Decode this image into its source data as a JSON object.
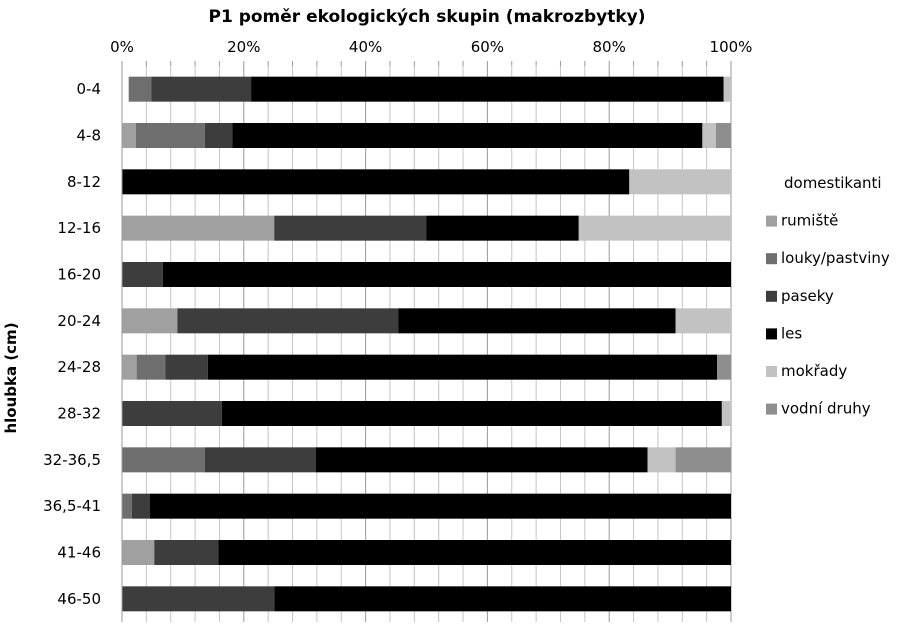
{
  "chart_data": {
    "type": "bar",
    "orientation": "horizontal",
    "stacked": "percent",
    "title": "P1 poměr ekologických skupin (makrozbytky)",
    "xlabel": "",
    "ylabel": "hloubka (cm)",
    "xlim": [
      0,
      100
    ],
    "x_ticks": [
      "0%",
      "20%",
      "40%",
      "60%",
      "80%",
      "100%"
    ],
    "grid": true,
    "legend_position": "right",
    "legend_title": "domestikanti",
    "categories": [
      "0-4",
      "4-8",
      "8-12",
      "12-16",
      "16-20",
      "20-24",
      "24-28",
      "28-32",
      "32-36,5",
      "36,5-41",
      "41-46",
      "46-50"
    ],
    "series": [
      {
        "name": "domestikanti",
        "color": "#ffffff",
        "values": [
          1.1,
          0,
          0,
          0,
          0,
          0,
          0,
          0,
          0,
          0,
          0,
          0
        ]
      },
      {
        "name": "rumiště",
        "color": "#a0a0a0",
        "values": [
          0,
          2.3,
          0,
          25,
          0,
          9.1,
          2.4,
          0,
          0,
          0,
          5.3,
          0
        ]
      },
      {
        "name": "louky/pastviny",
        "color": "#6e6e6e",
        "values": [
          3.7,
          11.3,
          0,
          0,
          0,
          0,
          4.7,
          0,
          13.6,
          1.6,
          0,
          0
        ]
      },
      {
        "name": "paseky",
        "color": "#3d3d3d",
        "values": [
          16.4,
          4.5,
          0,
          25,
          6.7,
          36.3,
          7.0,
          16.4,
          18.2,
          3.0,
          10.5,
          25
        ]
      },
      {
        "name": "les",
        "color": "#000000",
        "values": [
          77.6,
          77.2,
          83.3,
          25,
          93.3,
          45.5,
          83.6,
          82.1,
          54.5,
          95.4,
          84.2,
          75
        ]
      },
      {
        "name": "mokřady",
        "color": "#c2c2c2",
        "values": [
          1.2,
          2.2,
          16.7,
          25,
          0,
          9.1,
          0,
          1.5,
          4.6,
          0,
          0,
          0
        ]
      },
      {
        "name": "vodní druhy",
        "color": "#8e8e8e",
        "values": [
          0,
          2.5,
          0,
          0,
          0,
          0,
          2.3,
          0,
          9.1,
          0,
          0,
          0
        ]
      }
    ]
  }
}
